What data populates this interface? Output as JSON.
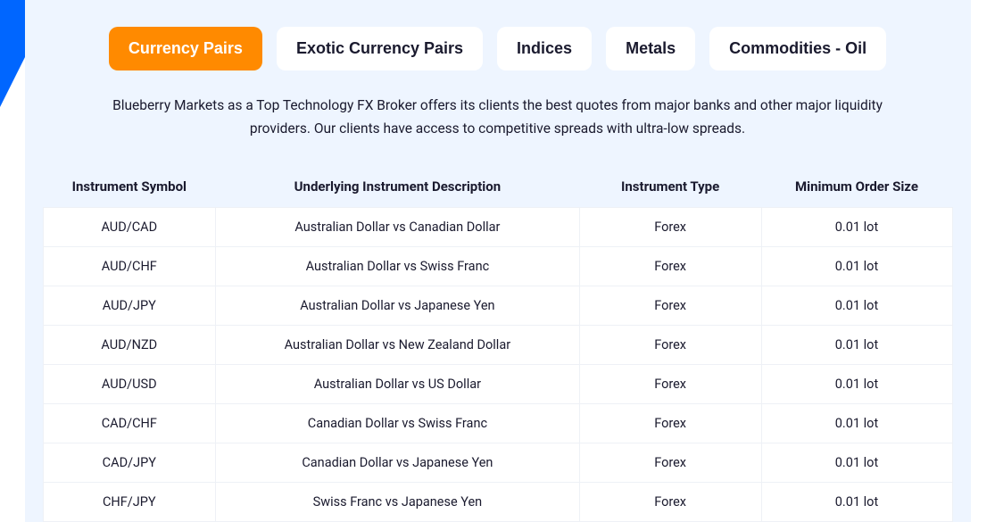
{
  "colors": {
    "accent_blue": "#0066ff",
    "panel_bg": "#eef5ff",
    "tab_active_bg": "#ff8a00",
    "tab_active_text": "#ffffff",
    "tab_bg": "#ffffff",
    "text": "#1a1a2e",
    "row_bg": "#ffffff",
    "row_border": "#eef1f6"
  },
  "tabs": [
    {
      "label": "Currency Pairs",
      "active": true
    },
    {
      "label": "Exotic Currency Pairs",
      "active": false
    },
    {
      "label": "Indices",
      "active": false
    },
    {
      "label": "Metals",
      "active": false
    },
    {
      "label": "Commodities - Oil",
      "active": false
    }
  ],
  "description": "Blueberry Markets as a Top Technology FX Broker offers its clients the best quotes from major banks and other major liquidity providers. Our clients have access to competitive spreads with ultra-low spreads.",
  "table": {
    "columns": [
      "Instrument Symbol",
      "Underlying Instrument Description",
      "Instrument Type",
      "Minimum Order Size"
    ],
    "rows": [
      [
        "AUD/CAD",
        "Australian Dollar vs Canadian Dollar",
        "Forex",
        "0.01 lot"
      ],
      [
        "AUD/CHF",
        "Australian Dollar vs Swiss Franc",
        "Forex",
        "0.01 lot"
      ],
      [
        "AUD/JPY",
        "Australian Dollar vs Japanese Yen",
        "Forex",
        "0.01 lot"
      ],
      [
        "AUD/NZD",
        "Australian Dollar vs New Zealand Dollar",
        "Forex",
        "0.01 lot"
      ],
      [
        "AUD/USD",
        "Australian Dollar vs US Dollar",
        "Forex",
        "0.01 lot"
      ],
      [
        "CAD/CHF",
        "Canadian Dollar vs Swiss Franc",
        "Forex",
        "0.01 lot"
      ],
      [
        "CAD/JPY",
        "Canadian Dollar vs Japanese Yen",
        "Forex",
        "0.01 lot"
      ],
      [
        "CHF/JPY",
        "Swiss Franc vs Japanese Yen",
        "Forex",
        "0.01 lot"
      ]
    ]
  }
}
